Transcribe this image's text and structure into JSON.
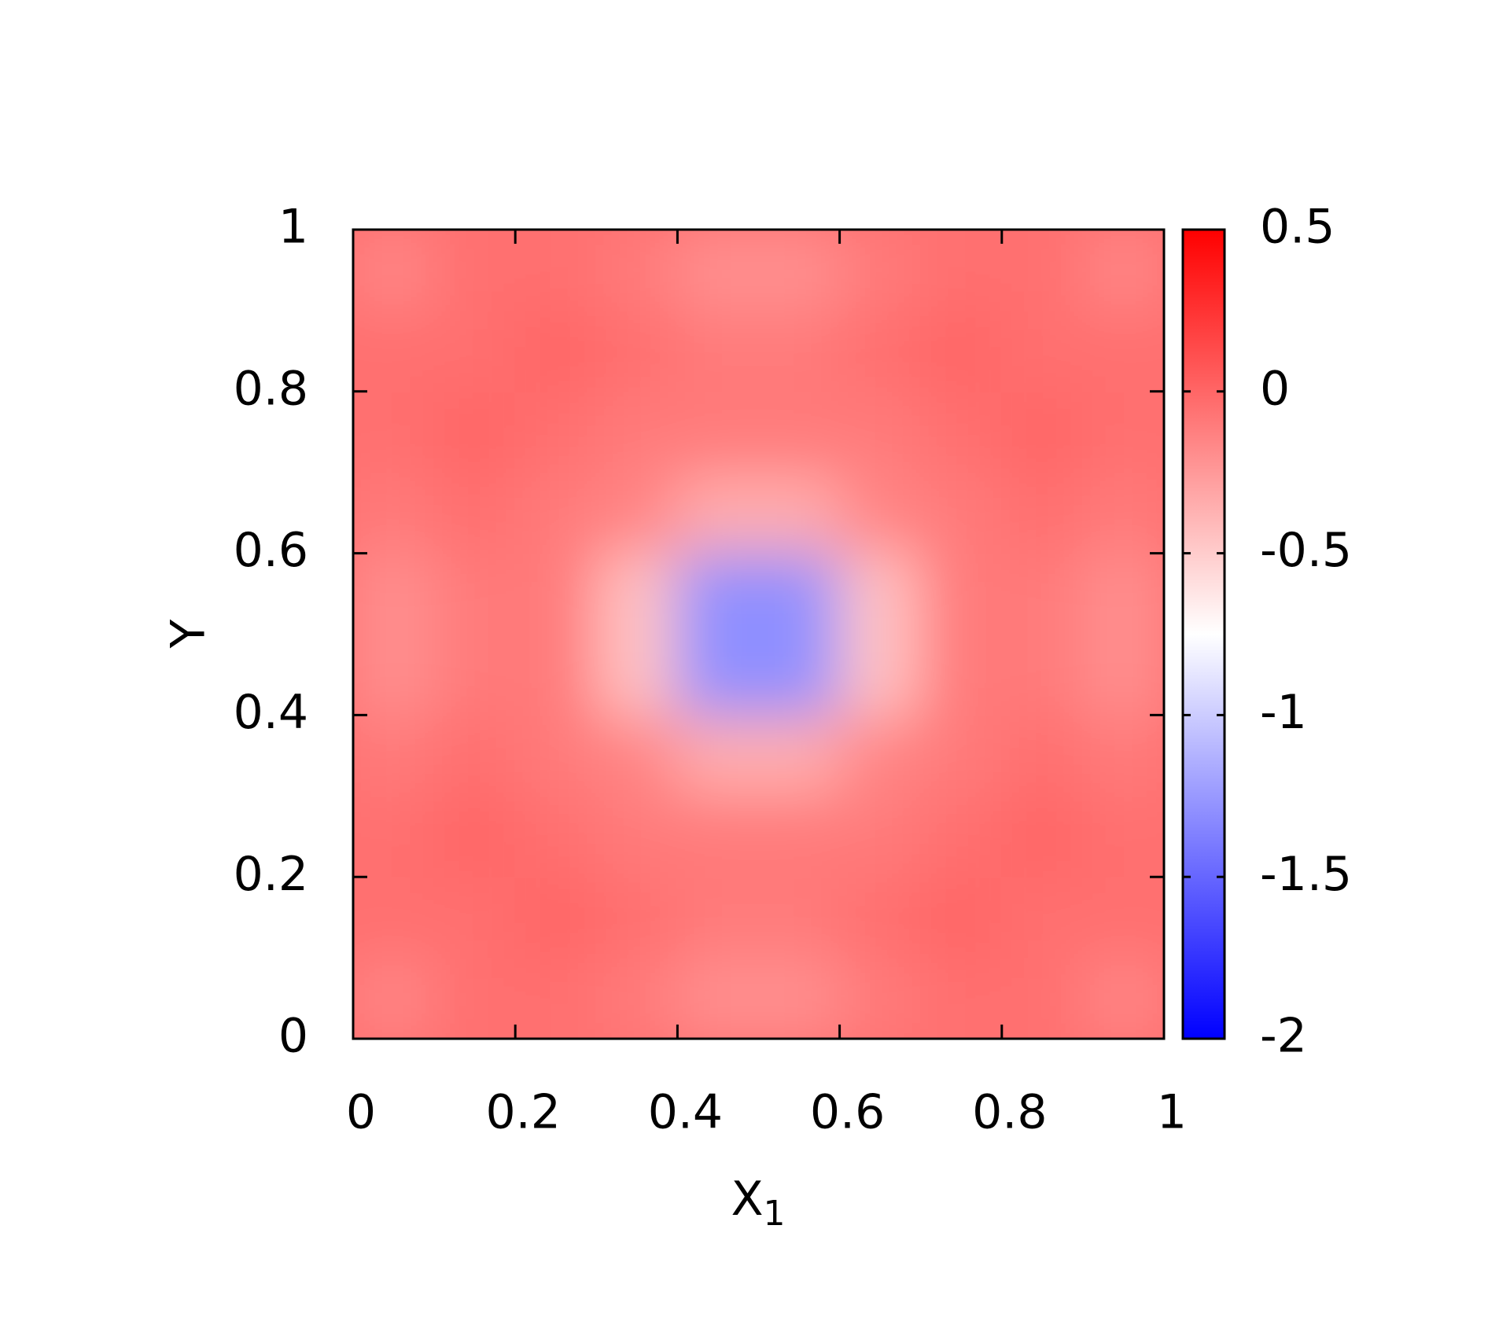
{
  "chart_data": {
    "type": "heatmap",
    "xlabel": {
      "text": "X",
      "subscript": "1"
    },
    "ylabel": "Y",
    "x": [
      0.05,
      0.15,
      0.25,
      0.35,
      0.45,
      0.55,
      0.65,
      0.75,
      0.85,
      0.95
    ],
    "y": [
      0.05,
      0.15,
      0.25,
      0.35,
      0.45,
      0.55,
      0.65,
      0.75,
      0.85,
      0.95
    ],
    "z": [
      [
        -0.15,
        -0.05,
        -0.05,
        -0.1,
        -0.2,
        -0.2,
        -0.1,
        -0.05,
        -0.05,
        -0.15
      ],
      [
        -0.05,
        -0.05,
        0,
        -0.05,
        -0.1,
        -0.1,
        -0.05,
        0,
        -0.05,
        -0.05
      ],
      [
        -0.05,
        0,
        -0.05,
        -0.1,
        -0.1,
        -0.1,
        -0.1,
        -0.05,
        0,
        -0.05
      ],
      [
        -0.1,
        -0.05,
        -0.1,
        -0.15,
        -0.35,
        -0.35,
        -0.15,
        -0.1,
        -0.05,
        -0.1
      ],
      [
        -0.2,
        -0.1,
        -0.1,
        -0.45,
        -1.3,
        -1.3,
        -0.45,
        -0.1,
        -0.1,
        -0.2
      ],
      [
        -0.2,
        -0.1,
        -0.1,
        -0.45,
        -1.3,
        -1.3,
        -0.45,
        -0.1,
        -0.1,
        -0.2
      ],
      [
        -0.1,
        -0.05,
        -0.1,
        -0.15,
        -0.35,
        -0.35,
        -0.15,
        -0.1,
        -0.05,
        -0.1
      ],
      [
        -0.05,
        0,
        -0.05,
        -0.1,
        -0.1,
        -0.1,
        -0.1,
        -0.05,
        0,
        -0.05
      ],
      [
        -0.05,
        -0.05,
        0,
        -0.05,
        -0.1,
        -0.1,
        -0.05,
        0,
        -0.05,
        -0.05
      ],
      [
        -0.15,
        -0.05,
        -0.05,
        -0.1,
        -0.2,
        -0.2,
        -0.1,
        -0.05,
        -0.05,
        -0.15
      ]
    ],
    "xlim": [
      0,
      1
    ],
    "ylim": [
      0,
      1
    ],
    "xticks": [
      0,
      0.2,
      0.4,
      0.6,
      0.8,
      1
    ],
    "yticks": [
      0,
      0.2,
      0.4,
      0.6,
      0.8,
      1
    ],
    "zlim": [
      -2,
      0.5
    ],
    "zticks": [
      -2,
      -1.5,
      -1,
      -0.5,
      0,
      0.5
    ],
    "colormap": [
      "#0000ff",
      "#ffffff",
      "#ff0000"
    ]
  }
}
